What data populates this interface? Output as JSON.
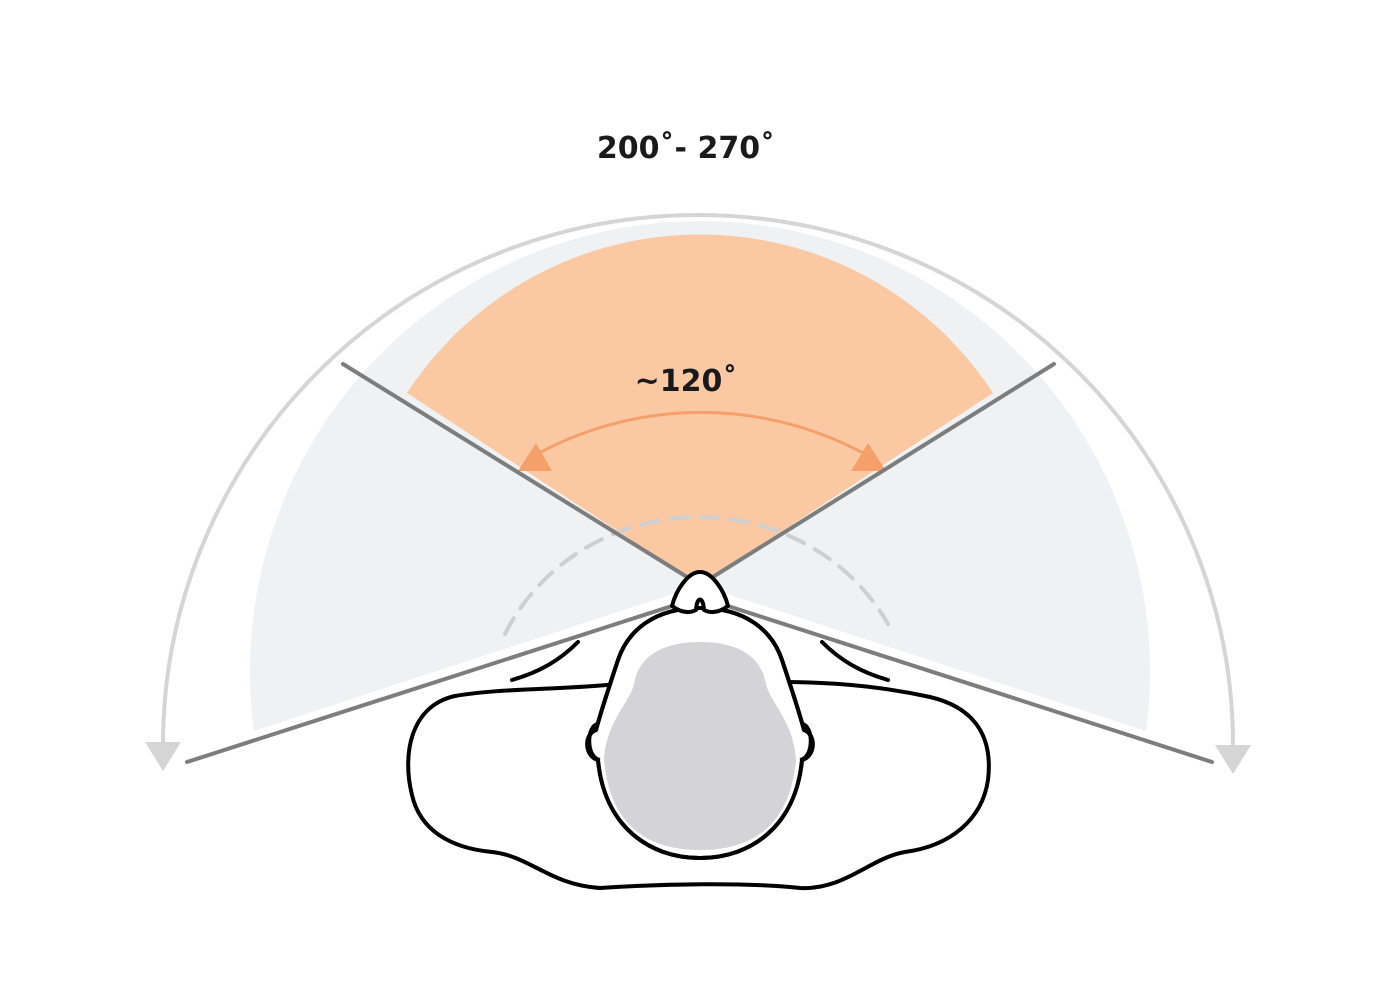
{
  "labels": {
    "total_field": "200˚- 270˚",
    "focus_field": "~120˚"
  },
  "colors": {
    "background": "#ffffff",
    "peripheral_fill": "#f0f1f3",
    "focus_fill": "#fac9a4",
    "focus_arrow": "#f5a06b",
    "outer_arc": "#d5d5d5",
    "boundary_lines": "#7d7d7d",
    "dashed_arc": "#cfcfcf",
    "outline": "#000000",
    "head_fill": "#d4d4d6"
  }
}
